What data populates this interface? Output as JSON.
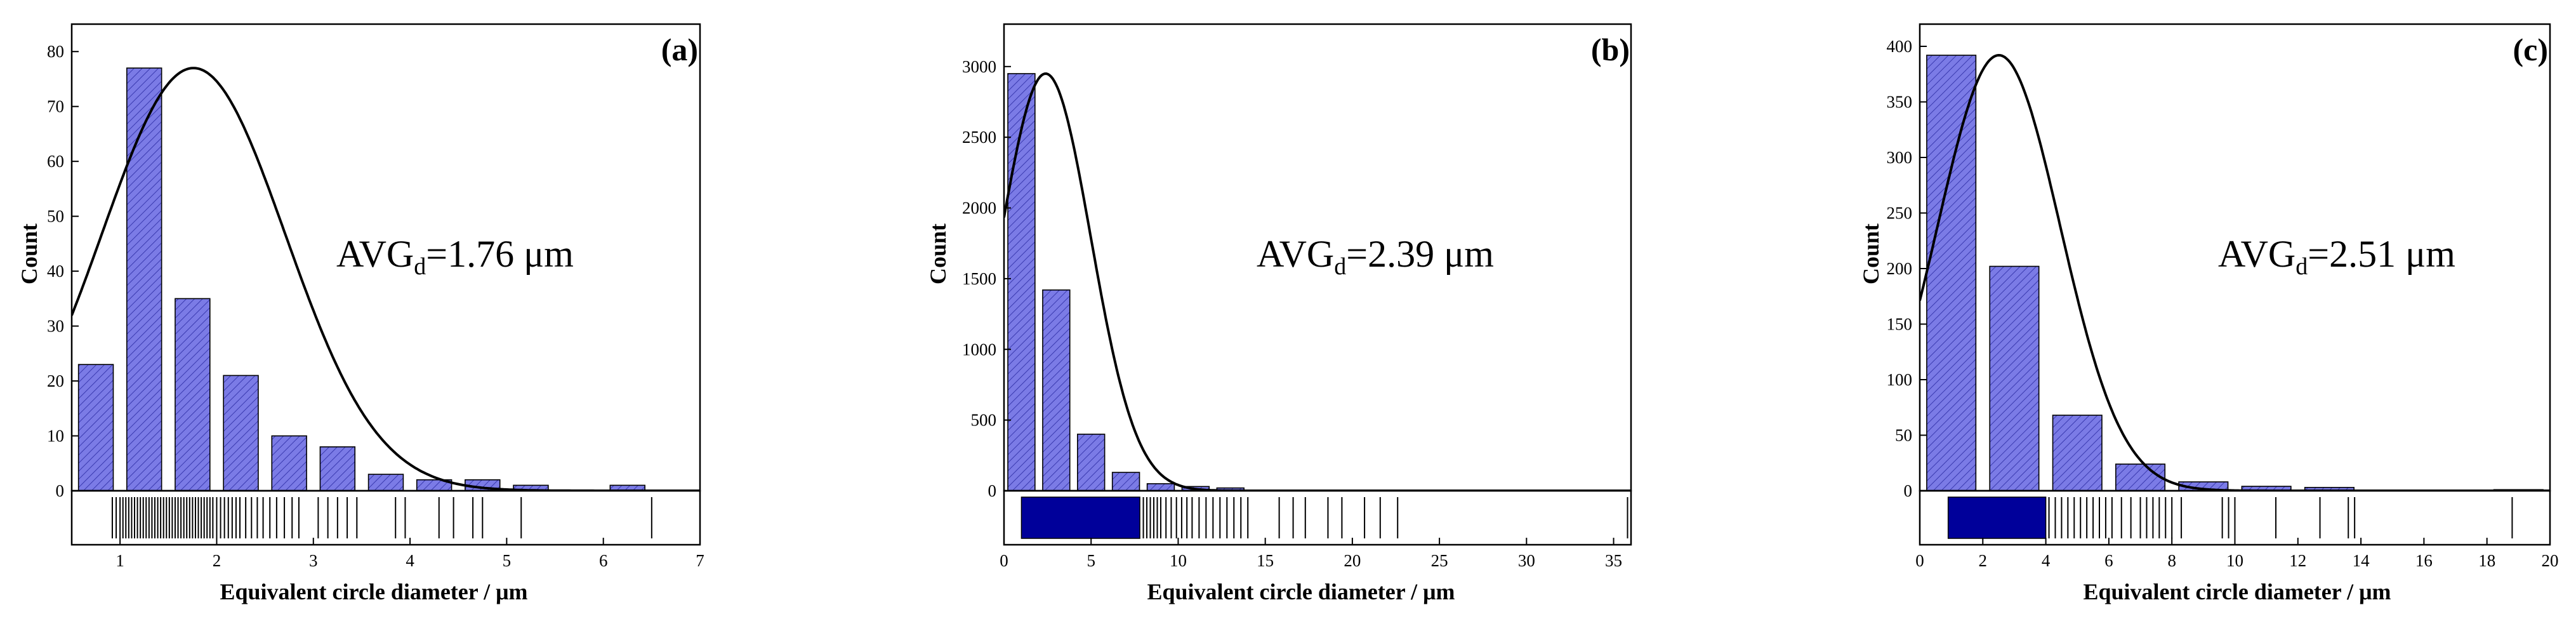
{
  "figure": {
    "xlabel": "Equivalent circle diameter / μm",
    "ylabel": "Count",
    "colors": {
      "bar_fill": "#7b7be6",
      "hatch": "#3a3ab0",
      "curve": "#000000",
      "rug_dense": "#00009a",
      "frame": "#000000"
    }
  },
  "chart_data": [
    {
      "type": "bar",
      "panel_label": "(a)",
      "annotation": {
        "prefix": "AVG",
        "sub": "d",
        "value": "=1.76 μm"
      },
      "xlabel": "Equivalent circle diameter / μm",
      "ylabel": "Count",
      "xlim": [
        0.5,
        7
      ],
      "ylim": [
        0,
        85
      ],
      "xticks": [
        1,
        2,
        3,
        4,
        5,
        6,
        7
      ],
      "yticks": [
        0,
        10,
        20,
        30,
        40,
        50,
        60,
        70,
        80
      ],
      "bin_width": 0.5,
      "bar_rel_width": 0.72,
      "bin_centers": [
        0.75,
        1.25,
        1.75,
        2.25,
        2.75,
        3.25,
        3.75,
        4.25,
        4.75,
        5.25,
        6.25
      ],
      "values": [
        23,
        77,
        35,
        21,
        10,
        8,
        3,
        2,
        2,
        1,
        1
      ],
      "normal_fit": {
        "mean": 1.76,
        "peak": 77,
        "sigma": 0.95
      },
      "rug": {
        "dense_ranges": [],
        "x": [
          0.92,
          0.96,
          1.0,
          1.03,
          1.06,
          1.09,
          1.12,
          1.15,
          1.18,
          1.21,
          1.24,
          1.27,
          1.3,
          1.33,
          1.36,
          1.39,
          1.42,
          1.45,
          1.48,
          1.51,
          1.54,
          1.57,
          1.6,
          1.63,
          1.66,
          1.69,
          1.72,
          1.75,
          1.78,
          1.81,
          1.84,
          1.87,
          1.9,
          1.93,
          1.96,
          2.0,
          2.04,
          2.08,
          2.12,
          2.16,
          2.2,
          2.24,
          2.3,
          2.36,
          2.42,
          2.48,
          2.55,
          2.62,
          2.7,
          2.78,
          2.85,
          3.05,
          3.15,
          3.25,
          3.35,
          3.45,
          3.85,
          3.95,
          4.3,
          4.45,
          4.65,
          4.75,
          5.15,
          6.5
        ]
      }
    },
    {
      "type": "bar",
      "panel_label": "(b)",
      "annotation": {
        "prefix": "AVG",
        "sub": "d",
        "value": "=2.39 μm"
      },
      "xlabel": "Equivalent circle diameter / μm",
      "ylabel": "Count",
      "xlim": [
        0,
        36
      ],
      "ylim": [
        0,
        3300
      ],
      "xticks": [
        0,
        5,
        10,
        15,
        20,
        25,
        30,
        35
      ],
      "yticks": [
        0,
        500,
        1000,
        1500,
        2000,
        2500,
        3000
      ],
      "bin_width": 2,
      "bar_rel_width": 0.78,
      "bin_centers": [
        1,
        3,
        5,
        7,
        9,
        11,
        13,
        17
      ],
      "values": [
        2950,
        1420,
        400,
        130,
        50,
        30,
        20,
        5
      ],
      "normal_fit": {
        "mean": 2.39,
        "peak": 2950,
        "sigma": 2.6
      },
      "rug": {
        "dense_ranges": [
          [
            1.0,
            7.8
          ]
        ],
        "x": [
          8.0,
          8.2,
          8.4,
          8.6,
          8.8,
          9.0,
          9.3,
          9.6,
          9.9,
          10.2,
          10.5,
          10.8,
          11.2,
          11.6,
          12.0,
          12.4,
          12.8,
          13.2,
          13.6,
          14.0,
          15.8,
          16.6,
          17.3,
          18.6,
          19.4,
          20.7,
          21.6,
          22.6,
          35.8
        ]
      }
    },
    {
      "type": "bar",
      "panel_label": "(c)",
      "annotation": {
        "prefix": "AVG",
        "sub": "d",
        "value": "=2.51 μm"
      },
      "xlabel": "Equivalent circle diameter / μm",
      "ylabel": "Count",
      "xlim": [
        0,
        20
      ],
      "ylim": [
        0,
        420
      ],
      "xticks": [
        0,
        2,
        4,
        6,
        8,
        10,
        12,
        14,
        16,
        18,
        20
      ],
      "yticks": [
        0,
        50,
        100,
        150,
        200,
        250,
        300,
        350,
        400
      ],
      "bin_width": 2,
      "bar_rel_width": 0.78,
      "bin_centers": [
        1,
        3,
        5,
        7,
        9,
        11,
        13,
        19
      ],
      "values": [
        392,
        202,
        68,
        24,
        8,
        4,
        3,
        1
      ],
      "normal_fit": {
        "mean": 2.51,
        "peak": 392,
        "sigma": 1.95
      },
      "rug": {
        "dense_ranges": [
          [
            0.9,
            4.0
          ]
        ],
        "x": [
          4.1,
          4.3,
          4.5,
          4.7,
          4.9,
          5.1,
          5.3,
          5.5,
          5.7,
          5.9,
          6.1,
          6.4,
          6.7,
          7.0,
          7.2,
          7.4,
          7.6,
          7.8,
          8.0,
          8.3,
          9.6,
          9.8,
          10.0,
          11.3,
          12.7,
          13.6,
          13.8,
          18.8
        ]
      }
    }
  ]
}
